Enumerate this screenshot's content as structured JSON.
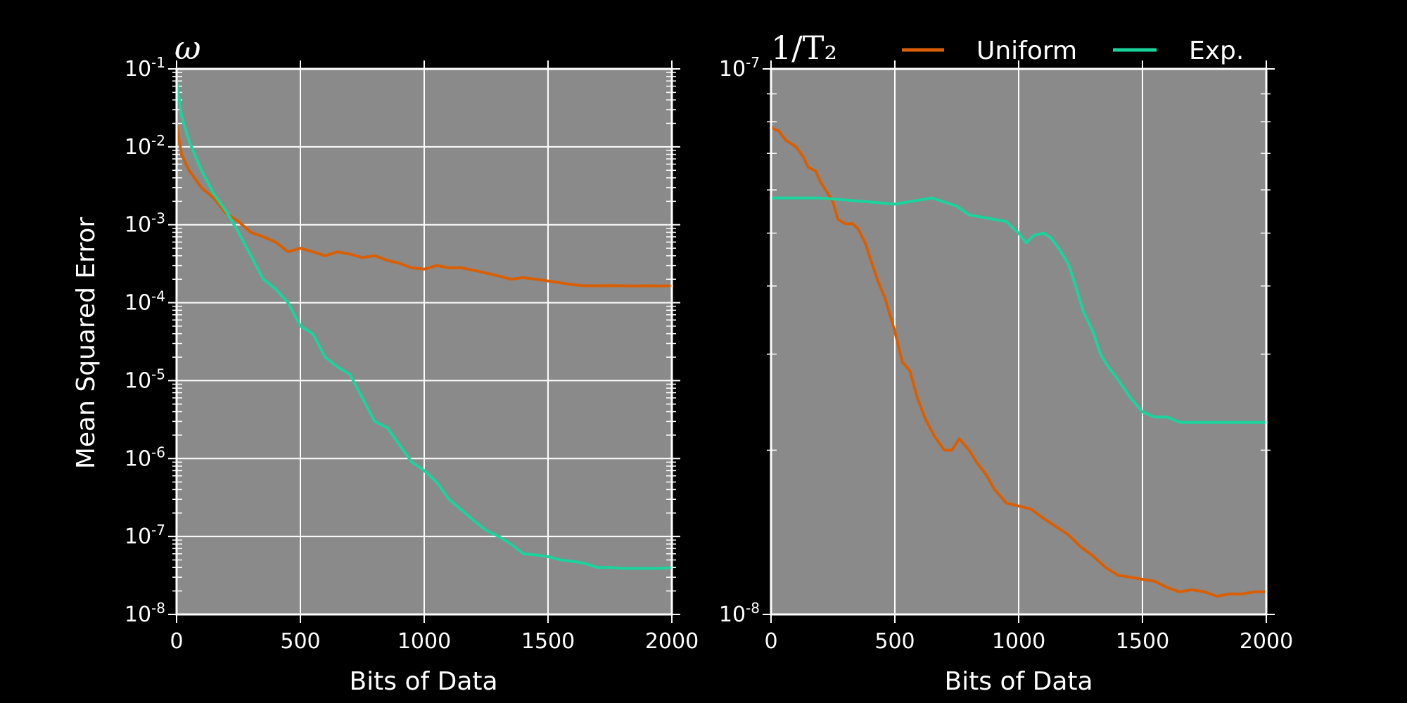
{
  "colors": {
    "background": "#000000",
    "plot_bg": "#8a8a8a",
    "grid": "#ffffff",
    "uniform": "#d95f02",
    "exp": "#1bd39c"
  },
  "chart_data": [
    {
      "type": "line",
      "title": "ω",
      "xlabel": "Bits of Data",
      "ylabel": "Mean Squared Error",
      "xlim": [
        0,
        2000
      ],
      "ylim": [
        1e-08,
        0.1
      ],
      "yscale": "log",
      "xticks": [
        "0",
        "500",
        "1000",
        "1500",
        "2000"
      ],
      "ytick_exponents": [
        "-1",
        "-2",
        "-3",
        "-4",
        "-5",
        "-6",
        "-7",
        "-8"
      ],
      "grid": true,
      "series": [
        {
          "name": "Uniform",
          "color": "#d95f02",
          "x": [
            0,
            20,
            50,
            100,
            150,
            200,
            250,
            300,
            350,
            400,
            450,
            500,
            550,
            600,
            650,
            700,
            750,
            800,
            850,
            900,
            950,
            1000,
            1050,
            1100,
            1150,
            1200,
            1250,
            1300,
            1350,
            1400,
            1450,
            1500,
            1550,
            1600,
            1650,
            1700,
            1750,
            1800,
            1850,
            1900,
            1950,
            2000
          ],
          "y": [
            0.02,
            0.008,
            0.005,
            0.003,
            0.0022,
            0.0014,
            0.0011,
            0.0008,
            0.0007,
            0.0006,
            0.00045,
            0.0005,
            0.00045,
            0.0004,
            0.00045,
            0.00042,
            0.00038,
            0.0004,
            0.00035,
            0.00032,
            0.00028,
            0.00027,
            0.0003,
            0.00028,
            0.00028,
            0.00026,
            0.00024,
            0.00022,
            0.0002,
            0.00021,
            0.0002,
            0.00019,
            0.00018,
            0.00017,
            0.000165,
            0.000165,
            0.000166,
            0.000165,
            0.000164,
            0.000165,
            0.000164,
            0.000165
          ]
        },
        {
          "name": "Exp.",
          "color": "#1bd39c",
          "x": [
            0,
            20,
            50,
            100,
            150,
            200,
            250,
            300,
            350,
            400,
            450,
            500,
            550,
            600,
            650,
            700,
            750,
            800,
            850,
            900,
            950,
            1000,
            1050,
            1100,
            1150,
            1200,
            1250,
            1300,
            1350,
            1400,
            1450,
            1500,
            1550,
            1600,
            1650,
            1700,
            1750,
            1800,
            1850,
            1900,
            1950,
            2000
          ],
          "y": [
            0.07,
            0.025,
            0.012,
            0.005,
            0.0025,
            0.0015,
            0.0008,
            0.0004,
            0.0002,
            0.00015,
            0.0001,
            5e-05,
            4e-05,
            2e-05,
            1.5e-05,
            1.2e-05,
            6e-06,
            3e-06,
            2.5e-06,
            1.5e-06,
            9e-07,
            7e-07,
            5e-07,
            3e-07,
            2.2e-07,
            1.6e-07,
            1.2e-07,
            1e-07,
            8e-08,
            6e-08,
            5.8e-08,
            5.5e-08,
            5e-08,
            4.8e-08,
            4.5e-08,
            4e-08,
            4e-08,
            3.9e-08,
            3.9e-08,
            3.9e-08,
            3.9e-08,
            4e-08
          ]
        }
      ]
    },
    {
      "type": "line",
      "title": "1/T₂",
      "xlabel": "Bits of Data",
      "ylabel": "",
      "xlim": [
        0,
        2000
      ],
      "ylim": [
        1e-08,
        1e-07
      ],
      "yscale": "log",
      "xticks": [
        "0",
        "500",
        "1000",
        "1500",
        "2000"
      ],
      "ytick_exponents": [
        "-7",
        "-8"
      ],
      "grid": true,
      "legend": "top",
      "series": [
        {
          "name": "Uniform",
          "color": "#d95f02",
          "x": [
            0,
            30,
            60,
            100,
            130,
            150,
            180,
            200,
            230,
            250,
            270,
            300,
            330,
            350,
            380,
            400,
            430,
            460,
            500,
            530,
            560,
            590,
            620,
            660,
            700,
            730,
            760,
            800,
            830,
            870,
            900,
            950,
            1000,
            1050,
            1100,
            1150,
            1200,
            1250,
            1300,
            1350,
            1400,
            1450,
            1500,
            1550,
            1600,
            1650,
            1700,
            1750,
            1800,
            1850,
            1900,
            1950,
            2000
          ],
          "y": [
            7.8e-08,
            7.7e-08,
            7.4e-08,
            7.2e-08,
            6.9e-08,
            6.6e-08,
            6.5e-08,
            6.2e-08,
            5.9e-08,
            5.7e-08,
            5.3e-08,
            5.2e-08,
            5.2e-08,
            5.1e-08,
            4.8e-08,
            4.5e-08,
            4.1e-08,
            3.8e-08,
            3.3e-08,
            2.9e-08,
            2.8e-08,
            2.5e-08,
            2.3e-08,
            2.12e-08,
            2e-08,
            2e-08,
            2.1e-08,
            2e-08,
            1.9e-08,
            1.8e-08,
            1.7e-08,
            1.6e-08,
            1.58e-08,
            1.56e-08,
            1.5e-08,
            1.45e-08,
            1.4e-08,
            1.33e-08,
            1.28e-08,
            1.22e-08,
            1.18e-08,
            1.17e-08,
            1.16e-08,
            1.15e-08,
            1.12e-08,
            1.1e-08,
            1.11e-08,
            1.1e-08,
            1.08e-08,
            1.09e-08,
            1.09e-08,
            1.1e-08,
            1.1e-08
          ]
        },
        {
          "name": "Exp.",
          "color": "#1bd39c",
          "x": [
            0,
            100,
            200,
            300,
            400,
            500,
            550,
            600,
            650,
            700,
            750,
            800,
            850,
            900,
            950,
            1000,
            1030,
            1060,
            1100,
            1130,
            1160,
            1200,
            1230,
            1260,
            1300,
            1330,
            1360,
            1400,
            1450,
            1500,
            1550,
            1600,
            1650,
            1700,
            1800,
            1900,
            2000
          ],
          "y": [
            5.8e-08,
            5.8e-08,
            5.8e-08,
            5.75e-08,
            5.7e-08,
            5.65e-08,
            5.7e-08,
            5.75e-08,
            5.8e-08,
            5.7e-08,
            5.6e-08,
            5.4e-08,
            5.35e-08,
            5.3e-08,
            5.25e-08,
            5e-08,
            4.8e-08,
            4.95e-08,
            5e-08,
            4.9e-08,
            4.7e-08,
            4.4e-08,
            4e-08,
            3.6e-08,
            3.3e-08,
            3e-08,
            2.85e-08,
            2.7e-08,
            2.5e-08,
            2.35e-08,
            2.3e-08,
            2.3e-08,
            2.25e-08,
            2.25e-08,
            2.25e-08,
            2.25e-08,
            2.25e-08
          ]
        }
      ]
    }
  ]
}
